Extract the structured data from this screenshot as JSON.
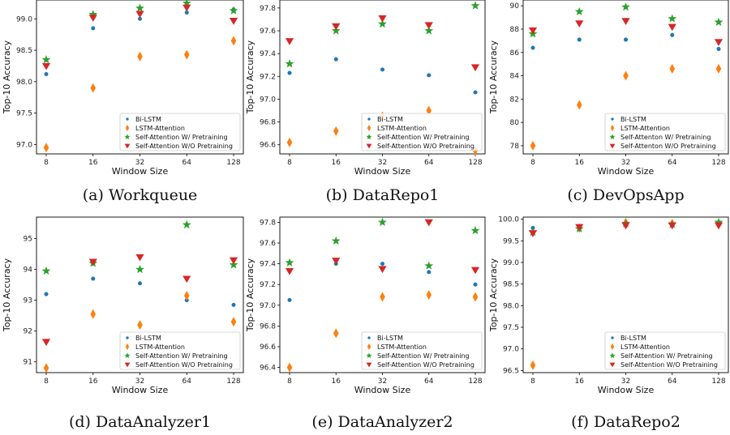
{
  "legend_labels": [
    "Bi-LSTM",
    "LSTM-Attention",
    "Self-Attention W/ Pretraining",
    "Self-Attention W/O Pretraining"
  ],
  "series_colors": [
    "#1f77b4",
    "#ff7f0e",
    "#2ca02c",
    "#d62728"
  ],
  "series_markers": [
    "circle",
    "thin-diamond",
    "star",
    "triangle-down"
  ],
  "chart_data": [
    {
      "type": "scatter",
      "caption": "(a) Workqueue",
      "xlabel": "Window Size",
      "ylabel": "Top-10 Accuracy",
      "x": [
        "8",
        "16",
        "32",
        "64",
        "128"
      ],
      "yticks": [
        "97.0",
        "97.5",
        "98.0",
        "98.5",
        "99.0"
      ],
      "ylim": [
        96.85,
        99.3
      ],
      "legend_position": "lower-right",
      "series": [
        {
          "name": "Bi-LSTM",
          "values": [
            98.12,
            98.85,
            99.0,
            99.1,
            99.15
          ]
        },
        {
          "name": "LSTM-Attention",
          "values": [
            96.95,
            97.9,
            98.4,
            98.43,
            98.65
          ]
        },
        {
          "name": "Self-Attention W/ Pretraining",
          "values": [
            98.35,
            99.07,
            99.17,
            99.25,
            99.13
          ]
        },
        {
          "name": "Self-Attention W/O Pretraining",
          "values": [
            98.25,
            99.02,
            99.08,
            99.18,
            98.97
          ]
        }
      ]
    },
    {
      "type": "scatter",
      "caption": "(b) DataRepo1",
      "xlabel": "Window Size",
      "ylabel": "Top-10 Accuracy",
      "x": [
        "8",
        "16",
        "32",
        "64",
        "128"
      ],
      "yticks": [
        "96.6",
        "96.8",
        "97.0",
        "97.2",
        "97.4",
        "97.6",
        "97.8"
      ],
      "ylim": [
        96.52,
        97.87
      ],
      "legend_position": "lower-right",
      "series": [
        {
          "name": "Bi-LSTM",
          "values": [
            97.23,
            97.35,
            97.26,
            97.21,
            97.06
          ]
        },
        {
          "name": "LSTM-Attention",
          "values": [
            96.62,
            96.72,
            96.85,
            96.9,
            96.55
          ]
        },
        {
          "name": "Self-Attention W/ Pretraining",
          "values": [
            97.31,
            97.6,
            97.66,
            97.6,
            97.82
          ]
        },
        {
          "name": "Self-Attention W/O Pretraining",
          "values": [
            97.51,
            97.64,
            97.71,
            97.65,
            97.28
          ]
        }
      ]
    },
    {
      "type": "scatter",
      "caption": "(c) DevOpsApp",
      "xlabel": "Window Size",
      "ylabel": "Top-10 Accuracy",
      "x": [
        "8",
        "16",
        "32",
        "64",
        "128"
      ],
      "yticks": [
        "78",
        "80",
        "82",
        "84",
        "86",
        "88",
        "90"
      ],
      "ylim": [
        77.3,
        90.5
      ],
      "legend_position": "lower-right",
      "series": [
        {
          "name": "Bi-LSTM",
          "values": [
            86.4,
            87.1,
            87.1,
            87.5,
            86.3
          ]
        },
        {
          "name": "LSTM-Attention",
          "values": [
            78.0,
            81.5,
            84.0,
            84.6,
            84.6
          ]
        },
        {
          "name": "Self-Attenton W/ Pretraining",
          "values": [
            87.6,
            89.5,
            89.9,
            88.9,
            88.6
          ]
        },
        {
          "name": "Self-Attenton W/O Pretraining",
          "values": [
            87.9,
            88.5,
            88.7,
            88.2,
            86.9
          ]
        }
      ]
    },
    {
      "type": "scatter",
      "caption": "(d) DataAnalyzer1",
      "xlabel": "Window Size",
      "ylabel": "Top-10 Accuracy",
      "x": [
        "8",
        "16",
        "32",
        "64",
        "128"
      ],
      "yticks": [
        "91",
        "92",
        "93",
        "94",
        "95"
      ],
      "ylim": [
        90.65,
        95.7
      ],
      "legend_position": "lower-right",
      "series": [
        {
          "name": "Bi-LSTM",
          "values": [
            93.2,
            93.7,
            93.55,
            93.0,
            92.85
          ]
        },
        {
          "name": "LSTM-Attention",
          "values": [
            90.8,
            92.55,
            92.2,
            93.15,
            92.3
          ]
        },
        {
          "name": "Self-Attention W/ Pretraining",
          "values": [
            93.95,
            94.2,
            94.0,
            95.45,
            94.15
          ]
        },
        {
          "name": "Self-Attention W/O Pretraining",
          "values": [
            91.65,
            94.25,
            94.4,
            93.7,
            94.3
          ]
        }
      ]
    },
    {
      "type": "scatter",
      "caption": "(e) DataAnalyzer2",
      "xlabel": "Window Size",
      "ylabel": "Top-10 Accuracy",
      "x": [
        "8",
        "16",
        "32",
        "64",
        "128"
      ],
      "yticks": [
        "96.4",
        "96.6",
        "96.8",
        "97.0",
        "97.2",
        "97.4",
        "97.6",
        "97.8"
      ],
      "ylim": [
        96.35,
        97.85
      ],
      "legend_position": "lower-right",
      "series": [
        {
          "name": "Bi-LSTM",
          "values": [
            97.05,
            97.4,
            97.4,
            97.32,
            97.2
          ]
        },
        {
          "name": "LSTM-Attention",
          "values": [
            96.4,
            96.73,
            97.08,
            97.1,
            97.08
          ]
        },
        {
          "name": "Self-Attention W/ Pretraining",
          "values": [
            97.41,
            97.62,
            97.8,
            97.38,
            97.72
          ]
        },
        {
          "name": "Self-Attention W/O Pretraining",
          "values": [
            97.33,
            97.43,
            97.35,
            97.8,
            97.34
          ]
        }
      ]
    },
    {
      "type": "scatter",
      "caption": "(f) DataRepo2",
      "xlabel": "Window Size",
      "ylabel": "Top-10 Accuracy",
      "x": [
        "8",
        "16",
        "32",
        "64",
        "128"
      ],
      "yticks": [
        "96.5",
        "97.0",
        "97.5",
        "98.0",
        "98.5",
        "99.0",
        "99.5",
        "100.0"
      ],
      "ylim": [
        96.45,
        100.05
      ],
      "legend_position": "lower-right",
      "series": [
        {
          "name": "Bi-LSTM",
          "values": [
            99.8,
            99.82,
            99.9,
            99.88,
            99.92
          ]
        },
        {
          "name": "LSTM-Attention",
          "values": [
            96.62,
            99.8,
            99.92,
            99.9,
            99.9
          ]
        },
        {
          "name": "Self-Attention W/ Pretraining",
          "values": [
            99.7,
            99.78,
            99.9,
            99.88,
            99.93
          ]
        },
        {
          "name": "Self-Attention W/O Pretraining",
          "values": [
            99.68,
            99.82,
            99.86,
            99.86,
            99.86
          ]
        }
      ]
    }
  ]
}
